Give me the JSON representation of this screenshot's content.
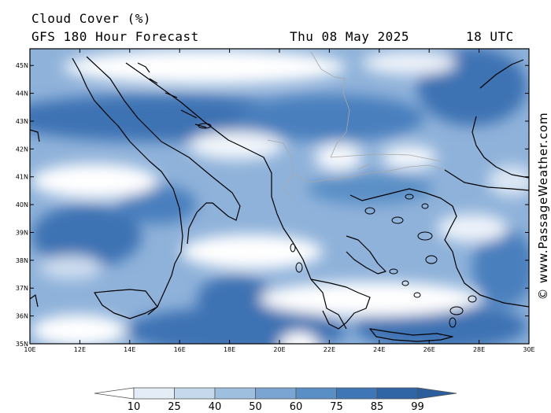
{
  "header": {
    "title": "Cloud Cover (%)",
    "subtitle": "GFS 180 Hour Forecast",
    "date": "Thu 08 May 2025",
    "time": "18 UTC"
  },
  "credit": "© www.PassageWeather.com",
  "map": {
    "lat_labels": [
      "45N",
      "44N",
      "43N",
      "42N",
      "41N",
      "40N",
      "39N",
      "38N",
      "37N",
      "36N",
      "35N"
    ],
    "lon_labels": [
      "10E",
      "12E",
      "14E",
      "16E",
      "18E",
      "20E",
      "22E",
      "24E",
      "26E",
      "28E",
      "30E"
    ],
    "lat_range": [
      35,
      45.6
    ],
    "lon_range": [
      10,
      30
    ]
  },
  "colorbar": {
    "labels": [
      "10",
      "25",
      "40",
      "50",
      "60",
      "75",
      "85",
      "99"
    ],
    "colors": [
      "#ffffff",
      "#e4edf7",
      "#c5d8ec",
      "#9fbfdf",
      "#7aa5d2",
      "#5a8fc6",
      "#3f76b5",
      "#2f65a5"
    ]
  }
}
